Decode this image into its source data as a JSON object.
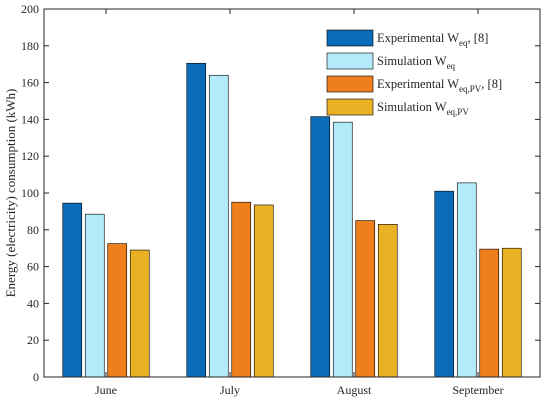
{
  "chart_data": {
    "type": "bar",
    "title": "",
    "xlabel": "",
    "ylabel": "Energy (electricity) consumption (kWh)",
    "ylim": [
      0,
      200
    ],
    "yticks": [
      0,
      20,
      40,
      60,
      80,
      100,
      120,
      140,
      160,
      180,
      200
    ],
    "categories": [
      "June",
      "July",
      "August",
      "September"
    ],
    "grid": false,
    "legend_position": "top-right",
    "series": [
      {
        "name": "Experimental W_eq, [8]",
        "legend": {
          "main": "Experimental W",
          "sub": "eq",
          "tail": ", [8]"
        },
        "color": "#0a6bb8",
        "values": [
          94.5,
          170.5,
          141.5,
          101
        ]
      },
      {
        "name": "Simulation W_eq",
        "legend": {
          "main": "Simulation W",
          "sub": "eq",
          "tail": ""
        },
        "color": "#b3ebfa",
        "values": [
          88.5,
          164,
          138.5,
          105.5
        ]
      },
      {
        "name": "Experimental W_eq,PV, [8]",
        "legend": {
          "main": "Experimental W",
          "sub": "eq,PV",
          "tail": ", [8]"
        },
        "color": "#ee7f1c",
        "values": [
          72.5,
          95,
          85,
          69.5
        ]
      },
      {
        "name": "Simulation W_eq,PV",
        "legend": {
          "main": "Simulation W",
          "sub": "eq,PV",
          "tail": ""
        },
        "color": "#ebb125",
        "values": [
          69,
          93.5,
          83,
          70
        ]
      }
    ]
  }
}
